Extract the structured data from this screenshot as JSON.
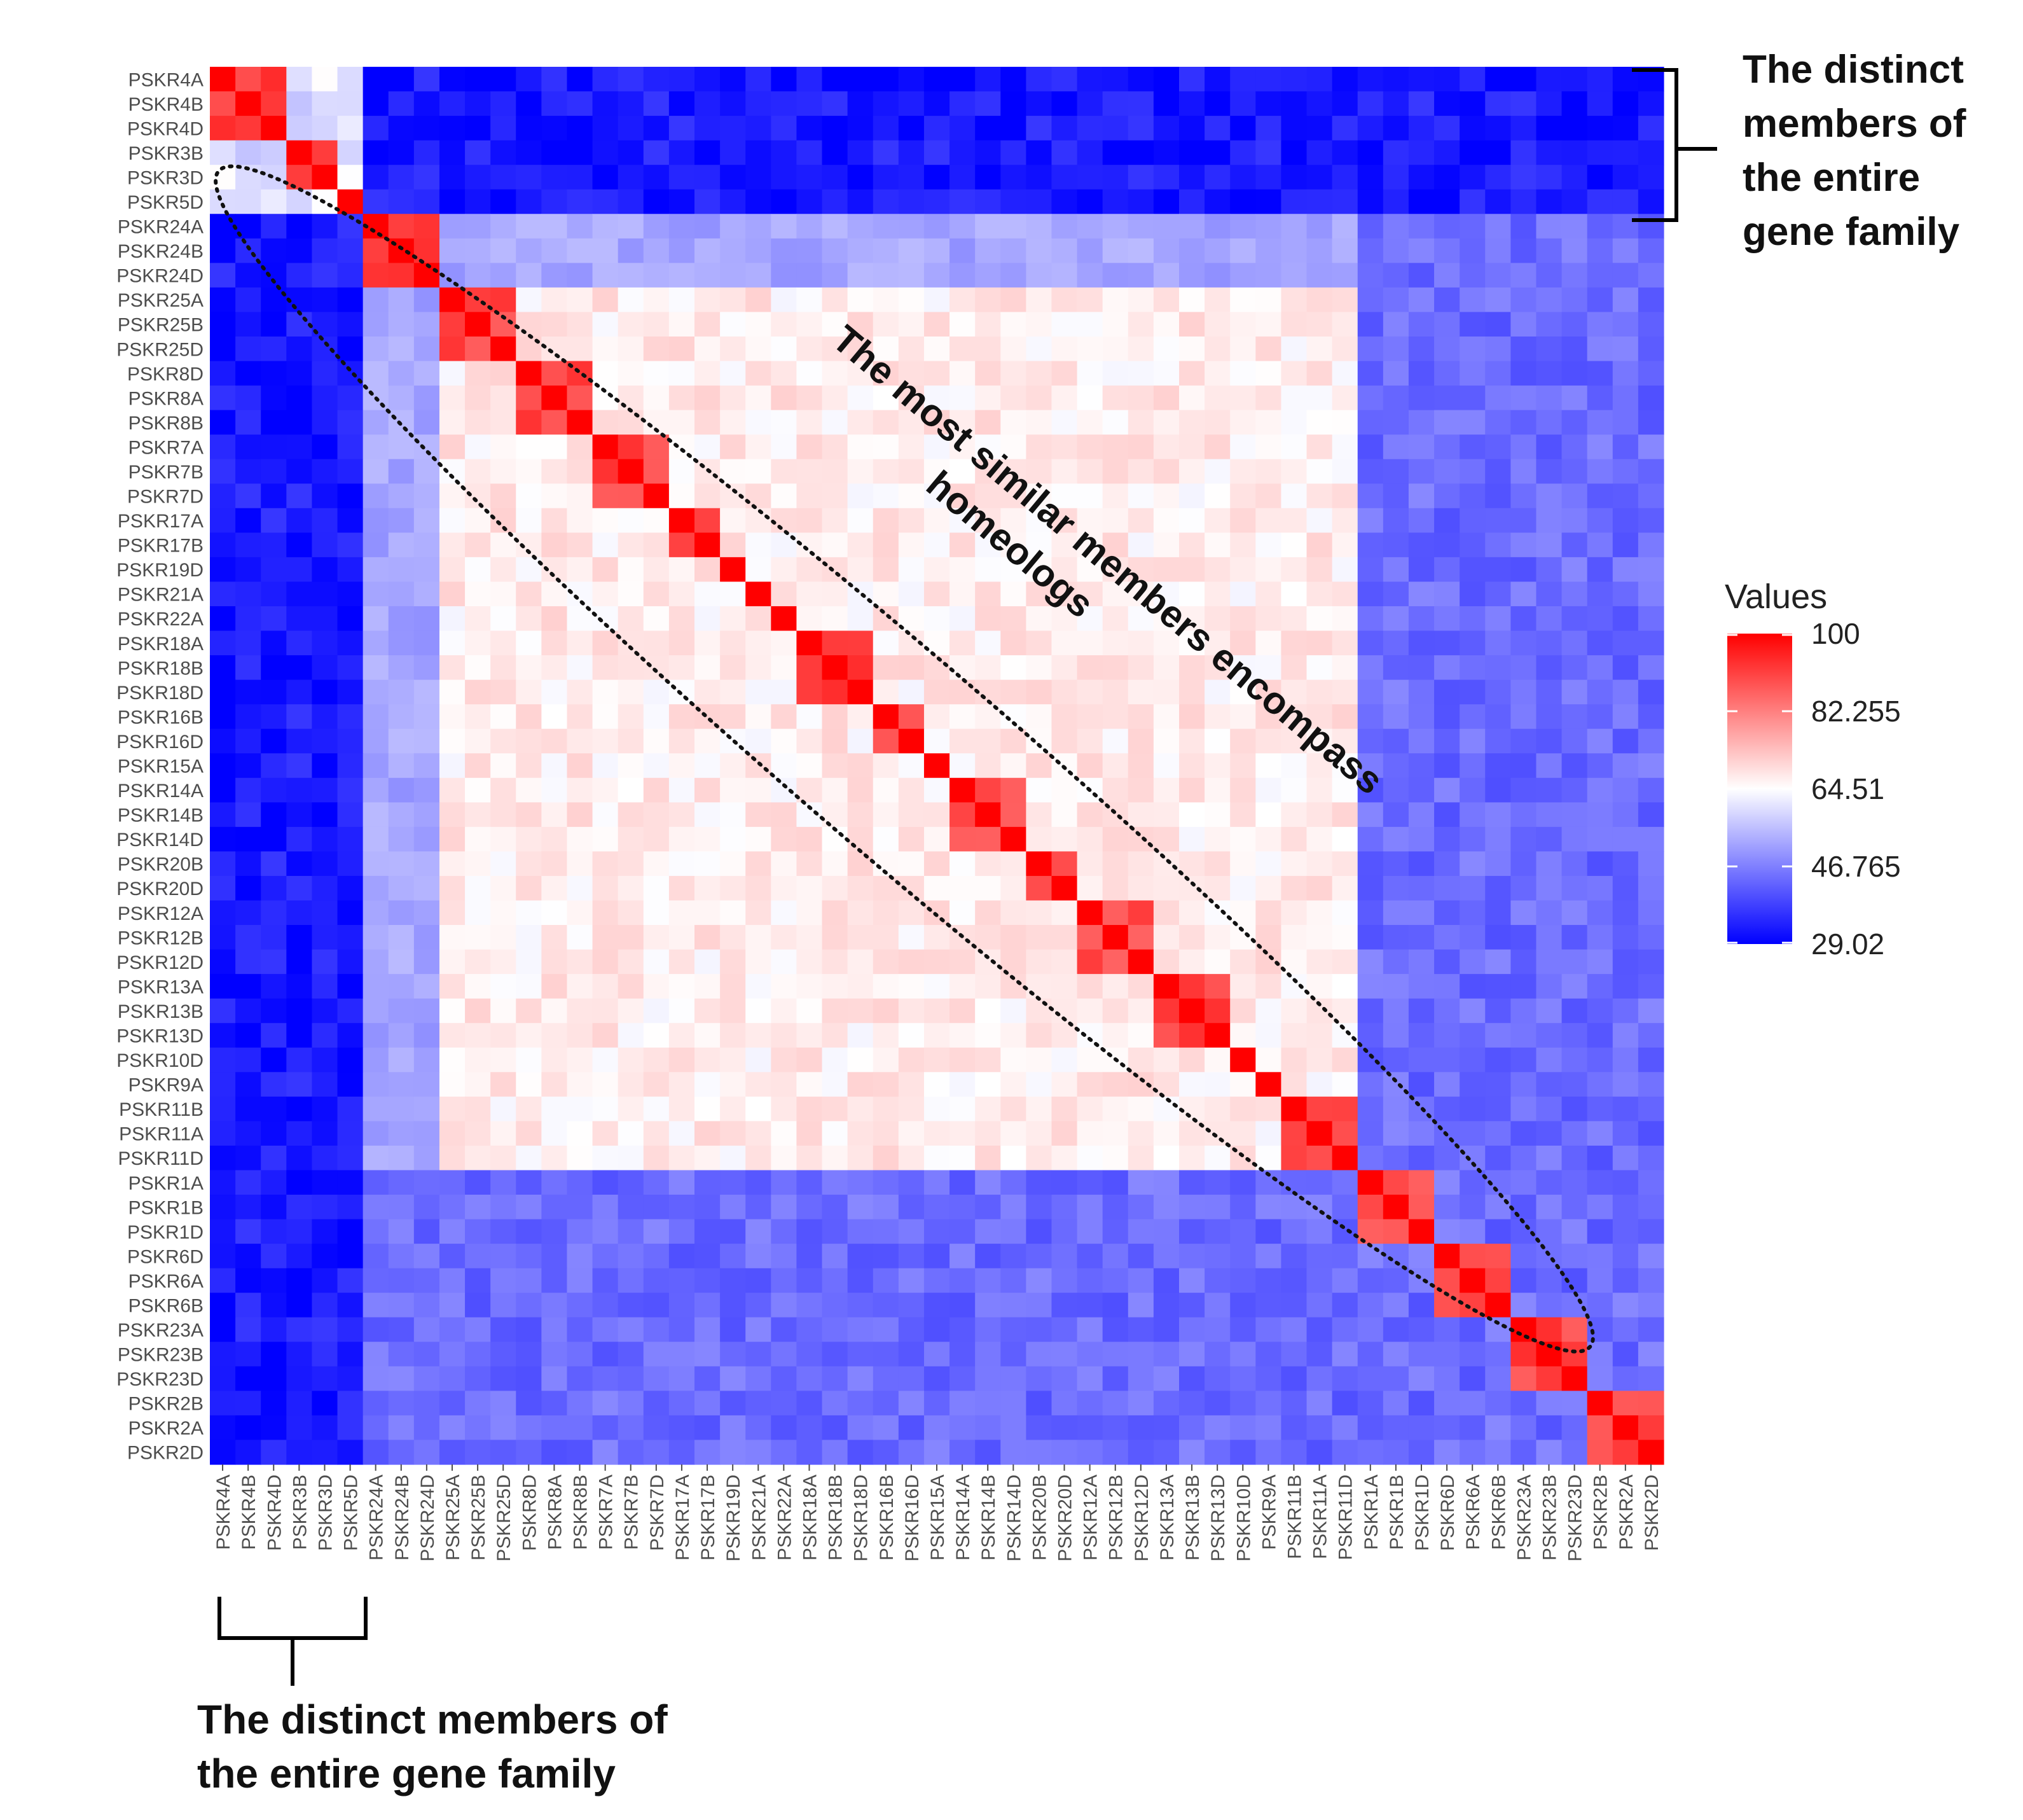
{
  "chart_data": {
    "type": "heatmap",
    "title": "",
    "xlabel": "",
    "ylabel": "",
    "labels": [
      "PSKR4A",
      "PSKR4B",
      "PSKR4D",
      "PSKR3B",
      "PSKR3D",
      "PSKR5D",
      "PSKR24A",
      "PSKR24B",
      "PSKR24D",
      "PSKR25A",
      "PSKR25B",
      "PSKR25D",
      "PSKR8D",
      "PSKR8A",
      "PSKR8B",
      "PSKR7A",
      "PSKR7B",
      "PSKR7D",
      "PSKR17A",
      "PSKR17B",
      "PSKR19D",
      "PSKR21A",
      "PSKR22A",
      "PSKR18A",
      "PSKR18B",
      "PSKR18D",
      "PSKR16B",
      "PSKR16D",
      "PSKR15A",
      "PSKR14A",
      "PSKR14B",
      "PSKR14D",
      "PSKR20B",
      "PSKR20D",
      "PSKR12A",
      "PSKR12B",
      "PSKR12D",
      "PSKR13A",
      "PSKR13B",
      "PSKR13D",
      "PSKR10D",
      "PSKR9A",
      "PSKR11B",
      "PSKR11A",
      "PSKR11D",
      "PSKR1A",
      "PSKR1B",
      "PSKR1D",
      "PSKR6D",
      "PSKR6A",
      "PSKR6B",
      "PSKR23A",
      "PSKR23B",
      "PSKR23D",
      "PSKR2B",
      "PSKR2A",
      "PSKR2D"
    ],
    "groups": [
      {
        "name": "distinct-top",
        "members": [
          0,
          1,
          2,
          3,
          4,
          5
        ]
      },
      {
        "name": "block-24",
        "members": [
          6,
          7,
          8
        ]
      },
      {
        "name": "central-homeolog-block",
        "members": [
          9,
          10,
          11,
          12,
          13,
          14,
          15,
          16,
          17,
          18,
          19,
          20,
          21,
          22,
          23,
          24,
          25,
          26,
          27,
          28,
          29,
          30,
          31,
          32,
          33,
          34,
          35,
          36,
          37,
          38,
          39,
          40,
          41,
          42,
          43,
          44
        ]
      },
      {
        "name": "block-1",
        "members": [
          45,
          46,
          47
        ]
      },
      {
        "name": "block-6",
        "members": [
          48,
          49,
          50
        ]
      },
      {
        "name": "block-23",
        "members": [
          51,
          52,
          53
        ]
      },
      {
        "name": "block-2",
        "members": [
          54,
          55,
          56
        ]
      }
    ],
    "typical_values": {
      "diagonal": 100,
      "homeolog_pair": 90,
      "within_central_block": 67,
      "within_block_24": 52,
      "between_lower_blocks": 44,
      "distinct_vs_others": 32,
      "within_distinct_group": 60
    },
    "colorscale": {
      "low": "#0000FF",
      "mid": "#FFFFFF",
      "high": "#FF0000"
    },
    "legend": {
      "title": "Values",
      "ticks": [
        "100",
        "82.255",
        "64.51",
        "46.765",
        "29.02"
      ],
      "range": [
        29.02,
        100
      ],
      "position": "right"
    }
  },
  "annotations": {
    "top_right": [
      "The distinct",
      "members of",
      "the entire",
      "gene family"
    ],
    "diagonal": [
      "The most similar members encompass",
      "homeologs"
    ],
    "bottom": [
      "The distinct members of",
      "the entire gene family"
    ]
  }
}
